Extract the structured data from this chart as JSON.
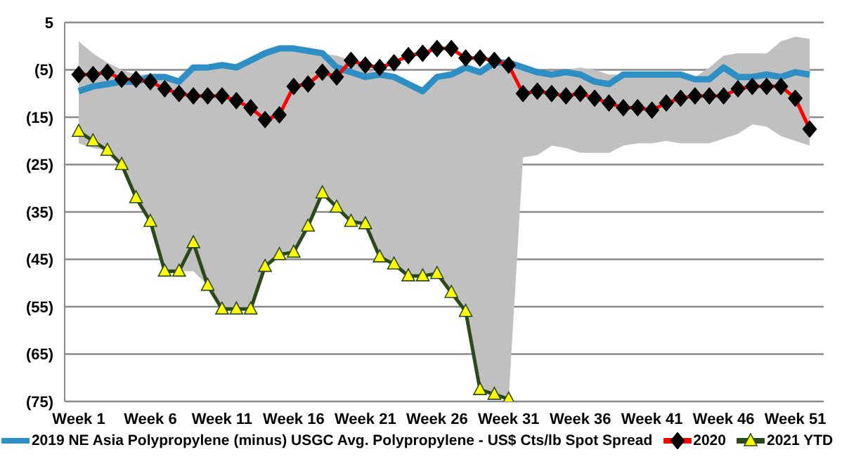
{
  "chart_data": {
    "type": "line",
    "categories": [
      "Week 1",
      null,
      null,
      null,
      null,
      "Week 6",
      null,
      null,
      null,
      null,
      "Week 11",
      null,
      null,
      null,
      null,
      "Week 16",
      null,
      null,
      null,
      null,
      "Week 21",
      null,
      null,
      null,
      null,
      "Week 26",
      null,
      null,
      null,
      null,
      "Week 31",
      null,
      null,
      null,
      null,
      "Week 36",
      null,
      null,
      null,
      null,
      "Week 41",
      null,
      null,
      null,
      null,
      "Week 46",
      null,
      null,
      null,
      null,
      "Week 51",
      null
    ],
    "ylim": [
      -75,
      5
    ],
    "yticks": [
      {
        "value": -75,
        "label": "(75)"
      },
      {
        "value": -65,
        "label": "(65)"
      },
      {
        "value": -55,
        "label": "(55)"
      },
      {
        "value": -45,
        "label": "(45)"
      },
      {
        "value": -35,
        "label": "(35)"
      },
      {
        "value": -25,
        "label": "(25)"
      },
      {
        "value": -15,
        "label": "(15)"
      },
      {
        "value": -5,
        "label": "(5)"
      },
      5
    ],
    "grid": "y",
    "legend": "bottom",
    "series": [
      {
        "name": "2019 NE Asia Polypropylene (minus) USGC Avg. Polypropylene - US$ Cts/lb Spot Spread",
        "color": "#2e8fc4",
        "marker": "none",
        "values": [
          -9.5,
          -8.5,
          -8,
          -7.5,
          -7.5,
          -6.5,
          -6.5,
          -7.5,
          -4.5,
          -4.5,
          -4,
          -4.5,
          -3,
          -1.5,
          -0.5,
          -0.5,
          -1,
          -1.5,
          -4.5,
          -5.5,
          -6.5,
          -6,
          -6.5,
          -8,
          -9.5,
          -6.5,
          -6,
          -4.5,
          -5.5,
          -3.5,
          -3.5,
          -4.5,
          -5.5,
          -6,
          -5.5,
          -6,
          -7.5,
          -8,
          -6,
          -6,
          -6,
          -6,
          -6,
          -7,
          -7,
          -4.5,
          -6.5,
          -6.5,
          -6,
          -6.5,
          -5.5,
          -6
        ],
        "lower": [
          -20.5,
          -21.5,
          -22,
          -25,
          -32,
          -37,
          -47.5,
          -47.5,
          -47.5,
          -50.5,
          -55.5,
          -55.5,
          -55.5,
          -46.5,
          -44,
          -43.5,
          -38,
          -31,
          -34,
          -37,
          -37.5,
          -44.5,
          -46,
          -48.5,
          -48.5,
          -48,
          -52,
          -56,
          -72.5,
          -73.5,
          -74.5,
          -23.5,
          -23,
          -21,
          -21.5,
          -22.5,
          -22.5,
          -22.5,
          -21,
          -20.5,
          -20.5,
          -20,
          -20.5,
          -20.5,
          -20.5,
          -19.5,
          -18.5,
          -16.5,
          -17,
          -19,
          -20,
          -21
        ],
        "upper": [
          1,
          -1.5,
          -3.5,
          -5,
          -6,
          -6,
          -6,
          -7,
          -4.5,
          -4,
          -4,
          -4.5,
          -3,
          -1.5,
          -0.5,
          -0.5,
          -1,
          -1.5,
          -2,
          -3,
          -5,
          -5.5,
          -6,
          -7.5,
          -9,
          -6,
          -6,
          -4.5,
          -5,
          -3.5,
          -3.5,
          -4.5,
          -5.5,
          -5.5,
          -5,
          -4.5,
          -5,
          -6,
          -6,
          -6,
          -6,
          -6,
          -6,
          -6.5,
          -4.5,
          -2,
          -1.5,
          -1.5,
          -1.5,
          1,
          2,
          1.5
        ]
      },
      {
        "name": "2020",
        "color": "#ff0000",
        "marker": "diamond",
        "values": [
          -6,
          -6,
          -5.5,
          -7,
          -7,
          -7.5,
          -9,
          -10,
          -10.5,
          -10.5,
          -10.5,
          -11.5,
          -13,
          -15.5,
          -14.5,
          -8.5,
          -8,
          -5.5,
          -6.5,
          -3,
          -4,
          -4.5,
          -3.5,
          -2,
          -1.5,
          -0.5,
          -0.5,
          -2.5,
          -2.5,
          -3,
          -4,
          -10,
          -9.5,
          -10,
          -10.5,
          -10,
          -11,
          -12,
          -13,
          -13,
          -13.5,
          -12,
          -11,
          -10.5,
          -10.5,
          -10.5,
          -9,
          -8.5,
          -8.5,
          -8.5,
          -11,
          -17.5
        ]
      },
      {
        "name": "2021 YTD",
        "color": "#2b4a1c",
        "marker": "triangle",
        "values": [
          -18,
          -20,
          -22,
          -25,
          -32,
          -37,
          -47.5,
          -47.5,
          -41.5,
          -50.5,
          -55.5,
          -55.5,
          -55.5,
          -46.5,
          -44,
          -43.5,
          -38,
          -31,
          -34,
          -37,
          -37.5,
          -44.5,
          -46,
          -48.5,
          -48.5,
          -48,
          -52,
          -56,
          -72.5,
          -73.5,
          -74.5,
          null,
          null,
          null,
          null,
          null,
          null,
          null,
          null,
          null,
          null,
          null,
          null,
          null,
          null,
          null,
          null,
          null,
          null,
          null,
          null,
          null
        ]
      }
    ]
  }
}
